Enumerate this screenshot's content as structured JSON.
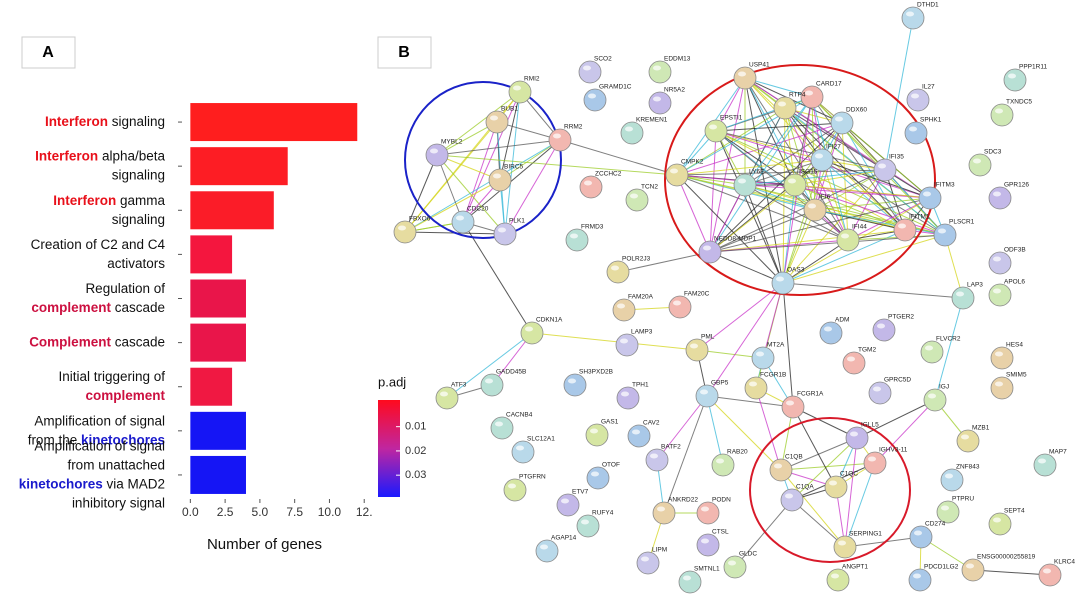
{
  "chart_data": [
    {
      "type": "bar",
      "orientation": "horizontal",
      "panel_label": "A",
      "categories": [
        [
          [
            {
              "text": "Interferon",
              "color": "#e8101a",
              "bold": true
            },
            {
              "text": " signaling"
            }
          ]
        ],
        [
          [
            {
              "text": "Interferon",
              "color": "#e8101a",
              "bold": true
            },
            {
              "text": " alpha/beta"
            }
          ],
          [
            {
              "text": "signaling"
            }
          ]
        ],
        [
          [
            {
              "text": "Interferon",
              "color": "#e8101a",
              "bold": true
            },
            {
              "text": " gamma"
            }
          ],
          [
            {
              "text": "signaling"
            }
          ]
        ],
        [
          [
            {
              "text": "Creation of C2 and C4"
            }
          ],
          [
            {
              "text": "activators"
            }
          ]
        ],
        [
          [
            {
              "text": "Regulation of"
            }
          ],
          [
            {
              "text": "complement",
              "color": "#cc1040",
              "bold": true
            },
            {
              "text": " cascade"
            }
          ]
        ],
        [
          [
            {
              "text": "Complement",
              "color": "#cc1040",
              "bold": true
            },
            {
              "text": " cascade"
            }
          ]
        ],
        [
          [
            {
              "text": "Initial triggering of"
            }
          ],
          [
            {
              "text": "complement",
              "color": "#cc1040",
              "bold": true
            }
          ]
        ],
        [
          [
            {
              "text": "Amplification of signal"
            }
          ],
          [
            {
              "text": "from the "
            },
            {
              "text": "kinetochores",
              "color": "#1a1acc",
              "bold": true
            }
          ]
        ],
        [
          [
            {
              "text": "Amplification of signal"
            }
          ],
          [
            {
              "text": "from unattached"
            }
          ],
          [
            {
              "text": "kinetochores",
              "color": "#1a1acc",
              "bold": true
            },
            {
              "text": " via MAD2"
            }
          ],
          [
            {
              "text": "inhibitory signal"
            }
          ]
        ]
      ],
      "values": [
        12,
        7,
        6,
        3,
        4,
        4,
        3,
        4,
        4
      ],
      "colors": [
        "#ff1e1e",
        "#fd1d24",
        "#fb1c28",
        "#f4163e",
        "#e9154a",
        "#e9154a",
        "#f01842",
        "#1515f5",
        "#1515f5"
      ],
      "xlim": [
        -0.6,
        12.7
      ],
      "xticks": [
        {
          "value": 0,
          "label": "0.0"
        },
        2.5,
        {
          "value": 5,
          "label": "5.0"
        },
        7.5,
        {
          "value": 10,
          "label": "10.0"
        },
        {
          "value": 12.5,
          "label": "12."
        }
      ],
      "xlabel": "Number of genes",
      "colorbar": {
        "title": "p.adj",
        "lim": [
          -0.001,
          0.039
        ],
        "ticks": [
          0.01,
          0.02,
          0.03
        ],
        "colors": [
          "#ff0a1e",
          "#c026a0",
          "#1a1aff"
        ]
      }
    },
    {
      "type": "network",
      "panel_label": "B",
      "nodes": [
        "DTHD1",
        "SCO2",
        "EDDM13",
        "USP41",
        "CARD17",
        "PPP1R11",
        "RMI2",
        "GRAMD1C",
        "NR5A2",
        "RTP4",
        "DDX60",
        "IL27",
        "TXNDC5",
        "BUB1",
        "RRM2",
        "KREMEN1",
        "EPSTI1",
        "SPHK1",
        "MYBL2",
        "CMPK2",
        "IFI27",
        "IFI35",
        "SDC3",
        "BIRC5",
        "ZCCHC2",
        "LY6E",
        "ISG15",
        "IFITM3",
        "GPR126",
        "FBXO6",
        "CDC20",
        "PLK1",
        "TCN2",
        "IFI6",
        "IFITM1",
        "FRMD3",
        "IFI44",
        "PLSCR1",
        "NEDD8-MDP1",
        "POLR2J3",
        "OAS3",
        "ODF3B",
        "APOL6",
        "FAM20A",
        "FAM20C",
        "LAP3",
        "CDKN1A",
        "ADM",
        "PTGER2",
        "PML",
        "MT2A",
        "LAMP3",
        "FLVCR2",
        "HES4",
        "TGM2",
        "GADD45B",
        "ATF3",
        "SH3PXD2B",
        "TPH1",
        "FCGR1B",
        "GBP5",
        "GPRC5D",
        "IGJ",
        "SMIM5",
        "FCGR1A",
        "CACNB4",
        "GAS1",
        "CAV2",
        "IGLL5",
        "MZB1",
        "SLC12A1",
        "BATF2",
        "RAB20",
        "C1QB",
        "IGHV3-11",
        "MAP7",
        "PTGFRN",
        "OTOF",
        "ETV7",
        "C1QC",
        "ZNF843",
        "C1QA",
        "PTPRU",
        "ANKRD22",
        "PODN",
        "RUFY4",
        "SEPT4",
        "CD274",
        "CTSL",
        "SERPING1",
        "AGAP14",
        "LIPM",
        "GLDC",
        "ENSG00000255819",
        "KLRC4",
        "SMTNL1",
        "ANGPT1",
        "PDCD1LG2"
      ]
    }
  ]
}
